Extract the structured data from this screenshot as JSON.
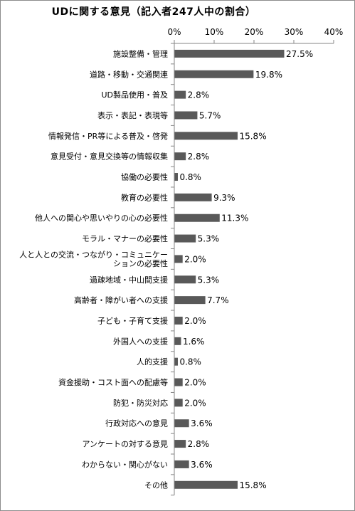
{
  "chart_data": {
    "type": "bar",
    "orientation": "horizontal",
    "title": "UDに関する意見（記入者247人中の割合）",
    "xlim": [
      0,
      40
    ],
    "x_ticks": [
      "0%",
      "10%",
      "20%",
      "30%",
      "40%"
    ],
    "grid": false,
    "legend": "none",
    "bar_color": "#595959",
    "categories": [
      [
        "施設整備・管理"
      ],
      [
        "道路・移動・交通関連"
      ],
      [
        "UD製品使用・普及"
      ],
      [
        "表示・表記・表現等"
      ],
      [
        "情報発信・PR等による普及・啓発"
      ],
      [
        "意見受付・意見交換等の情報収集"
      ],
      [
        "協働の必要性"
      ],
      [
        "教育の必要性"
      ],
      [
        "他人への関心や思いやりの心の必要性"
      ],
      [
        "モラル・マナーの必要性"
      ],
      [
        "人と人との交流・つながり・コミュニケー",
        "ションの必要性"
      ],
      [
        "過疎地域・中山間支援"
      ],
      [
        "高齢者・障がい者への支援"
      ],
      [
        "子ども・子育て支援"
      ],
      [
        "外国人への支援"
      ],
      [
        "人的支援"
      ],
      [
        "資金援助・コスト面への配慮等"
      ],
      [
        "防犯・防災対応"
      ],
      [
        "行政対応への意見"
      ],
      [
        "アンケートの対する意見"
      ],
      [
        "わからない・関心がない"
      ],
      [
        "その他"
      ]
    ],
    "values": [
      27.5,
      19.8,
      2.8,
      5.7,
      15.8,
      2.8,
      0.8,
      9.3,
      11.3,
      5.3,
      2.0,
      5.3,
      7.7,
      2.0,
      1.6,
      0.8,
      2.0,
      2.0,
      3.6,
      2.8,
      3.6,
      15.8
    ],
    "data_labels": [
      "27.5%",
      "19.8%",
      "2.8%",
      "5.7%",
      "15.8%",
      "2.8%",
      "0.8%",
      "9.3%",
      "11.3%",
      "5.3%",
      "2.0%",
      "5.3%",
      "7.7%",
      "2.0%",
      "1.6%",
      "0.8%",
      "2.0%",
      "2.0%",
      "3.6%",
      "2.8%",
      "3.6%",
      "15.8%"
    ]
  }
}
